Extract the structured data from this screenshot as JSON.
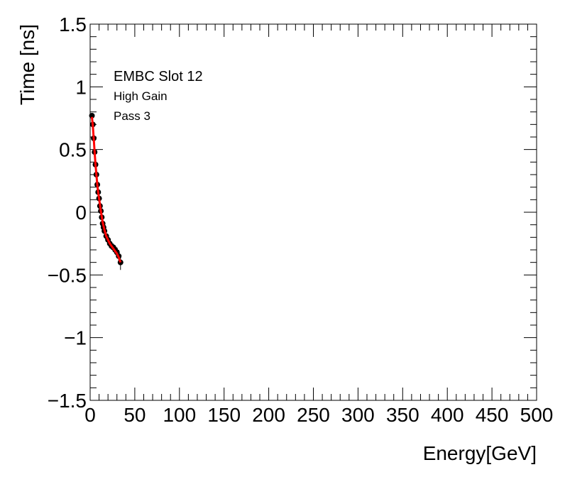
{
  "chart_data": {
    "type": "scatter",
    "xlabel": "Energy[GeV]",
    "ylabel": "Time [ns]",
    "xlim": [
      0,
      500
    ],
    "ylim": [
      -1.5,
      1.5
    ],
    "x_ticks": [
      0,
      50,
      100,
      150,
      200,
      250,
      300,
      350,
      400,
      450,
      500
    ],
    "x_tick_labels": [
      "0",
      "50",
      "100",
      "150",
      "200",
      "250",
      "300",
      "350",
      "400",
      "450",
      "500"
    ],
    "y_ticks": [
      -1.5,
      -1,
      -0.5,
      0,
      0.5,
      1,
      1.5
    ],
    "y_tick_labels": [
      "−1.5",
      "−1",
      "−0.5",
      "0",
      "0.5",
      "1",
      "1.5"
    ],
    "grid": false,
    "annotations": [
      "EMBC Slot 12",
      "High Gain",
      "Pass 3"
    ],
    "marker_color": "#000000",
    "fit_color": "#ff0000",
    "points": {
      "x": [
        2,
        3,
        4,
        5,
        6,
        7,
        8,
        9,
        10,
        11,
        12,
        13,
        14,
        15,
        16,
        18,
        20,
        22,
        24,
        26,
        28,
        30,
        32,
        34
      ],
      "y": [
        0.77,
        0.7,
        0.59,
        0.48,
        0.38,
        0.3,
        0.22,
        0.16,
        0.11,
        0.05,
        0.01,
        -0.04,
        -0.09,
        -0.12,
        -0.15,
        -0.19,
        -0.22,
        -0.25,
        -0.27,
        -0.28,
        -0.3,
        -0.32,
        -0.35,
        -0.4
      ],
      "yerr": [
        0.02,
        0.02,
        0.02,
        0.02,
        0.02,
        0.02,
        0.02,
        0.02,
        0.02,
        0.02,
        0.02,
        0.02,
        0.02,
        0.02,
        0.02,
        0.02,
        0.02,
        0.02,
        0.03,
        0.03,
        0.03,
        0.04,
        0.05,
        0.06
      ]
    },
    "fit": {
      "x": [
        2,
        3,
        4,
        5,
        6,
        7,
        8,
        9,
        10,
        12,
        14,
        16,
        18,
        20,
        22,
        24,
        26,
        28,
        30,
        32,
        34
      ],
      "y": [
        0.76,
        0.69,
        0.59,
        0.48,
        0.38,
        0.3,
        0.22,
        0.16,
        0.11,
        0.01,
        -0.08,
        -0.14,
        -0.19,
        -0.22,
        -0.25,
        -0.27,
        -0.29,
        -0.31,
        -0.33,
        -0.36,
        -0.4
      ]
    }
  }
}
